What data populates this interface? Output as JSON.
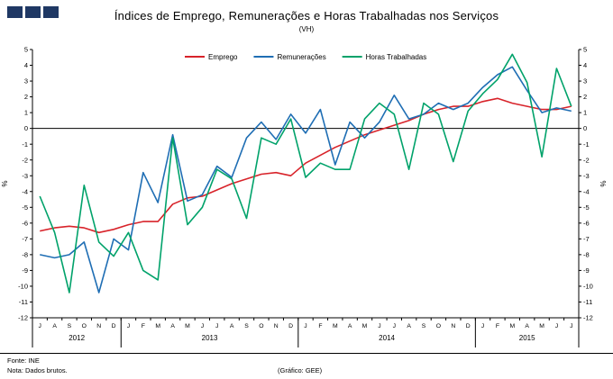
{
  "header": {
    "logo_color": "#1f3864"
  },
  "footer": {
    "source": "Fonte: INE",
    "note": "Nota: Dados brutos.",
    "credit": "(Gráfico: GEE)"
  },
  "chart_data": {
    "type": "line",
    "title": "Índices de Emprego, Remunerações e Horas Trabalhadas nos Serviços",
    "subtitle": "(VH)",
    "ylabel_left": "%",
    "ylabel_right": "%",
    "ylim": [
      -12,
      5
    ],
    "ytick_step": 1,
    "grid": false,
    "zero_line": true,
    "legend_position": "top-center",
    "months": [
      "J",
      "A",
      "S",
      "O",
      "N",
      "D",
      "J",
      "F",
      "M",
      "A",
      "M",
      "J",
      "J",
      "A",
      "S",
      "O",
      "N",
      "D",
      "J",
      "F",
      "M",
      "A",
      "M",
      "J",
      "J",
      "A",
      "S",
      "O",
      "N",
      "D",
      "J",
      "F",
      "M",
      "A",
      "M",
      "J",
      "J"
    ],
    "years": [
      {
        "label": "2012",
        "count": 6
      },
      {
        "label": "2013",
        "count": 12
      },
      {
        "label": "2014",
        "count": 12
      },
      {
        "label": "2015",
        "count": 7
      }
    ],
    "series": [
      {
        "name": "Emprego",
        "color": "#d8232a",
        "values": [
          -6.5,
          -6.3,
          -6.2,
          -6.3,
          -6.6,
          -6.4,
          -6.1,
          -5.9,
          -5.9,
          -4.8,
          -4.4,
          -4.3,
          -3.9,
          -3.5,
          -3.2,
          -2.9,
          -2.8,
          -3.0,
          -2.2,
          -1.7,
          -1.2,
          -0.8,
          -0.4,
          -0.1,
          0.2,
          0.5,
          0.9,
          1.2,
          1.4,
          1.4,
          1.7,
          1.9,
          1.6,
          1.4,
          1.2,
          1.2,
          1.4
        ]
      },
      {
        "name": "Remunerações",
        "color": "#1f6eb4",
        "values": [
          -8.0,
          -8.2,
          -8.0,
          -7.2,
          -10.4,
          -7.0,
          -7.7,
          -2.8,
          -4.7,
          -0.4,
          -4.6,
          -4.2,
          -2.4,
          -3.1,
          -0.6,
          0.4,
          -0.7,
          0.9,
          -0.3,
          1.2,
          -2.3,
          0.4,
          -0.6,
          0.4,
          2.1,
          0.6,
          0.9,
          1.6,
          1.2,
          1.6,
          2.6,
          3.4,
          3.9,
          2.4,
          1.0,
          1.3,
          1.1
        ]
      },
      {
        "name": "Horas Trabalhadas",
        "color": "#00a26a",
        "values": [
          -4.3,
          -6.6,
          -10.4,
          -3.6,
          -7.2,
          -8.1,
          -6.6,
          -9.0,
          -9.6,
          -0.6,
          -6.1,
          -5.0,
          -2.6,
          -3.2,
          -5.7,
          -0.6,
          -1.0,
          0.6,
          -3.1,
          -2.2,
          -2.6,
          -2.6,
          0.6,
          1.6,
          0.9,
          -2.6,
          1.6,
          0.9,
          -2.1,
          1.1,
          2.2,
          3.1,
          4.7,
          2.9,
          -1.8,
          3.8,
          1.4
        ]
      }
    ]
  }
}
